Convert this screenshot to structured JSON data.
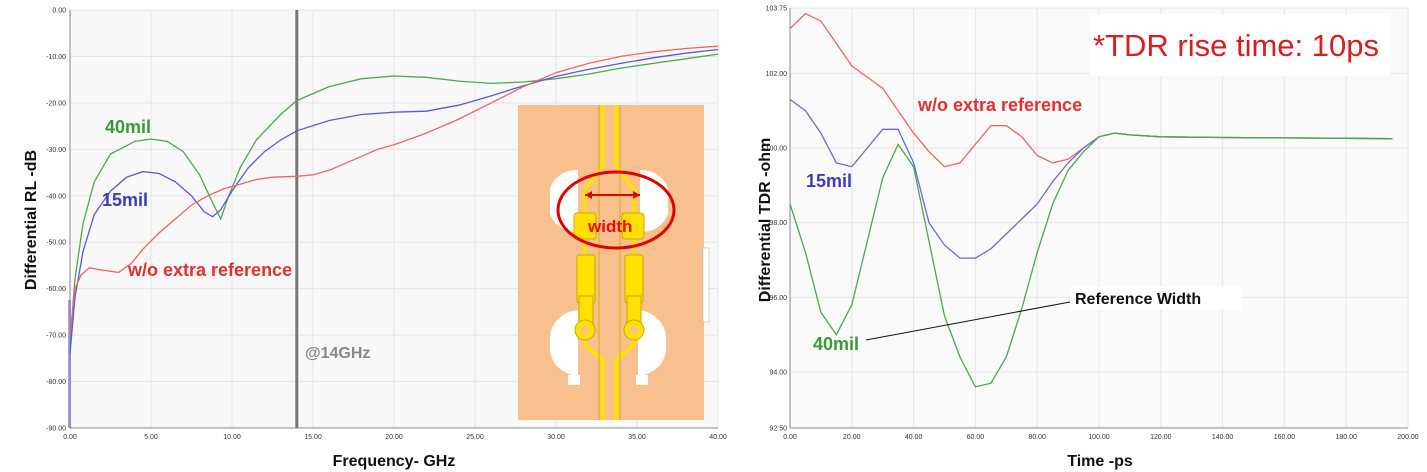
{
  "chart_data": [
    {
      "type": "line",
      "xlabel": "Frequency- GHz",
      "ylabel": "Differential RL -dB",
      "xlim": [
        0,
        40
      ],
      "ylim": [
        -90,
        0
      ],
      "x_ticks": [
        "0.00",
        "5.00",
        "10.00",
        "15.00",
        "20.00",
        "25.00",
        "30.00",
        "35.00",
        "40.00"
      ],
      "y_ticks": [
        "0.00",
        "-10.00",
        "-20.00",
        "-30.00",
        "-40.00",
        "-50.00",
        "-60.00",
        "-70.00",
        "-80.00",
        "-90.00"
      ],
      "grid": true,
      "marker_line": {
        "x": 14,
        "label": "@14GHz"
      },
      "series": [
        {
          "name": "40mil",
          "color": "#4aaa4a",
          "points": [
            [
              0,
              -72
            ],
            [
              0.3,
              -58
            ],
            [
              0.8,
              -46
            ],
            [
              1.5,
              -37
            ],
            [
              2.5,
              -31
            ],
            [
              4,
              -28.3
            ],
            [
              5,
              -27.8
            ],
            [
              6,
              -28.3
            ],
            [
              7,
              -30.5
            ],
            [
              8,
              -35.5
            ],
            [
              8.8,
              -41.5
            ],
            [
              9.3,
              -45
            ],
            [
              9.8,
              -40
            ],
            [
              10.5,
              -34
            ],
            [
              11.5,
              -28
            ],
            [
              13,
              -22.5
            ],
            [
              14,
              -19.5
            ],
            [
              16,
              -16.5
            ],
            [
              18,
              -14.8
            ],
            [
              20,
              -14.2
            ],
            [
              22,
              -14.5
            ],
            [
              24,
              -15.3
            ],
            [
              26,
              -15.8
            ],
            [
              28,
              -15.5
            ],
            [
              30,
              -14.8
            ],
            [
              32,
              -13.8
            ],
            [
              34,
              -12.5
            ],
            [
              36,
              -11.5
            ],
            [
              38,
              -10.5
            ],
            [
              40,
              -9.5
            ]
          ]
        },
        {
          "name": "15mil",
          "color": "#5a5ad8",
          "points": [
            [
              0,
              -74
            ],
            [
              0.3,
              -62
            ],
            [
              0.8,
              -52
            ],
            [
              1.5,
              -44
            ],
            [
              2.5,
              -39
            ],
            [
              3.5,
              -36
            ],
            [
              4.5,
              -34.8
            ],
            [
              5.5,
              -35.2
            ],
            [
              6.5,
              -37
            ],
            [
              7.5,
              -40
            ],
            [
              8.3,
              -43.5
            ],
            [
              8.8,
              -44.5
            ],
            [
              9.3,
              -43
            ],
            [
              10,
              -39
            ],
            [
              11,
              -34
            ],
            [
              12,
              -30.5
            ],
            [
              13,
              -28
            ],
            [
              14,
              -26
            ],
            [
              16,
              -23.8
            ],
            [
              18,
              -22.5
            ],
            [
              20,
              -22
            ],
            [
              22,
              -21.8
            ],
            [
              24,
              -20.5
            ],
            [
              26,
              -18.5
            ],
            [
              28,
              -16.3
            ],
            [
              30,
              -14.3
            ],
            [
              32,
              -12.8
            ],
            [
              34,
              -11.5
            ],
            [
              36,
              -10.3
            ],
            [
              38,
              -9.3
            ],
            [
              40,
              -8.5
            ]
          ]
        },
        {
          "name": "w/o extra reference",
          "color": "#ee6464",
          "points": [
            [
              0,
              -70
            ],
            [
              0.3,
              -60
            ],
            [
              0.7,
              -57
            ],
            [
              1.2,
              -55.5
            ],
            [
              2,
              -56
            ],
            [
              3,
              -56.5
            ],
            [
              3.8,
              -54.5
            ],
            [
              4.5,
              -51.5
            ],
            [
              5.5,
              -48
            ],
            [
              6.5,
              -45
            ],
            [
              7.5,
              -42
            ],
            [
              8.5,
              -40
            ],
            [
              9.5,
              -38.5
            ],
            [
              10.5,
              -37.5
            ],
            [
              11.5,
              -36.5
            ],
            [
              12.5,
              -36
            ],
            [
              14,
              -35.8
            ],
            [
              15,
              -35.5
            ],
            [
              16,
              -34.5
            ],
            [
              17,
              -33
            ],
            [
              18,
              -31.5
            ],
            [
              19,
              -30
            ],
            [
              20,
              -29
            ],
            [
              22,
              -26.5
            ],
            [
              24,
              -23.5
            ],
            [
              26,
              -20
            ],
            [
              28,
              -16.5
            ],
            [
              30,
              -13.5
            ],
            [
              32,
              -11.5
            ],
            [
              34,
              -10
            ],
            [
              36,
              -9
            ],
            [
              38,
              -8.3
            ],
            [
              40,
              -7.8
            ]
          ]
        }
      ],
      "annotations": [
        {
          "text": "40mil",
          "color": "#3a9a3a"
        },
        {
          "text": "15mil",
          "color": "#3c3cb8"
        },
        {
          "text": "w/o extra reference",
          "color": "#e03030"
        }
      ],
      "inset": {
        "label": "width",
        "color": "#ff0000"
      }
    },
    {
      "type": "line",
      "xlabel": "Time -ps",
      "ylabel": "Differential TDR -ohm",
      "xlim": [
        0,
        200
      ],
      "ylim": [
        92.5,
        103.75
      ],
      "x_ticks": [
        "0.00",
        "20.00",
        "40.00",
        "60.00",
        "80.00",
        "100.00",
        "120.00",
        "140.00",
        "160.00",
        "180.00",
        "200.00"
      ],
      "y_ticks": [
        {
          "value": 103.75,
          "label": "103.75"
        },
        {
          "value": 102,
          "label": "102.00"
        },
        {
          "value": 100,
          "label": "100.00"
        },
        {
          "value": 98,
          "label": "98.00"
        },
        {
          "value": 96,
          "label": "96.00"
        },
        {
          "value": 94,
          "label": "94.00"
        },
        {
          "value": 92.5,
          "label": "92.50"
        }
      ],
      "grid": true,
      "title": "*TDR rise time: 10ps",
      "series": [
        {
          "name": "w/o extra reference",
          "color": "#ee6464",
          "points": [
            [
              0,
              103.2
            ],
            [
              5,
              103.6
            ],
            [
              10,
              103.4
            ],
            [
              15,
              102.8
            ],
            [
              20,
              102.2
            ],
            [
              25,
              101.9
            ],
            [
              30,
              101.6
            ],
            [
              35,
              101.0
            ],
            [
              40,
              100.4
            ],
            [
              45,
              99.9
            ],
            [
              50,
              99.5
            ],
            [
              55,
              99.6
            ],
            [
              60,
              100.1
            ],
            [
              65,
              100.6
            ],
            [
              70,
              100.6
            ],
            [
              75,
              100.3
            ],
            [
              80,
              99.8
            ],
            [
              85,
              99.6
            ],
            [
              90,
              99.7
            ],
            [
              95,
              100.0
            ],
            [
              100,
              100.3
            ],
            [
              105,
              100.4
            ],
            [
              110,
              100.35
            ],
            [
              120,
              100.3
            ],
            [
              140,
              100.28
            ],
            [
              160,
              100.27
            ],
            [
              180,
              100.26
            ],
            [
              195,
              100.25
            ]
          ]
        },
        {
          "name": "15mil",
          "color": "#6a6ad8",
          "points": [
            [
              0,
              101.3
            ],
            [
              5,
              101.0
            ],
            [
              10,
              100.4
            ],
            [
              15,
              99.6
            ],
            [
              20,
              99.5
            ],
            [
              25,
              100.0
            ],
            [
              30,
              100.5
            ],
            [
              35,
              100.5
            ],
            [
              40,
              99.6
            ],
            [
              45,
              98.0
            ],
            [
              50,
              97.4
            ],
            [
              55,
              97.05
            ],
            [
              60,
              97.05
            ],
            [
              65,
              97.3
            ],
            [
              70,
              97.7
            ],
            [
              75,
              98.1
            ],
            [
              80,
              98.5
            ],
            [
              85,
              99.1
            ],
            [
              90,
              99.6
            ],
            [
              95,
              100.0
            ],
            [
              100,
              100.3
            ],
            [
              105,
              100.4
            ],
            [
              110,
              100.35
            ],
            [
              120,
              100.3
            ],
            [
              140,
              100.28
            ],
            [
              160,
              100.27
            ],
            [
              180,
              100.26
            ],
            [
              195,
              100.25
            ]
          ]
        },
        {
          "name": "40mil",
          "color": "#4aaa4a",
          "points": [
            [
              0,
              98.5
            ],
            [
              5,
              97.2
            ],
            [
              10,
              95.6
            ],
            [
              15,
              95.0
            ],
            [
              20,
              95.8
            ],
            [
              25,
              97.5
            ],
            [
              30,
              99.2
            ],
            [
              35,
              100.1
            ],
            [
              40,
              99.5
            ],
            [
              45,
              97.5
            ],
            [
              50,
              95.5
            ],
            [
              55,
              94.4
            ],
            [
              60,
              93.6
            ],
            [
              65,
              93.7
            ],
            [
              70,
              94.4
            ],
            [
              75,
              95.7
            ],
            [
              80,
              97.2
            ],
            [
              85,
              98.5
            ],
            [
              90,
              99.4
            ],
            [
              95,
              99.9
            ],
            [
              100,
              100.3
            ],
            [
              105,
              100.4
            ],
            [
              110,
              100.35
            ],
            [
              120,
              100.3
            ],
            [
              140,
              100.28
            ],
            [
              160,
              100.27
            ],
            [
              180,
              100.26
            ],
            [
              195,
              100.25
            ]
          ]
        }
      ],
      "annotations": [
        {
          "text": "w/o extra reference",
          "color": "#e03030"
        },
        {
          "text": "15mil",
          "color": "#3c3cb8"
        },
        {
          "text": "40mil",
          "color": "#3a9a3a"
        },
        {
          "text": "Reference Width",
          "color": "#111111"
        }
      ]
    }
  ]
}
